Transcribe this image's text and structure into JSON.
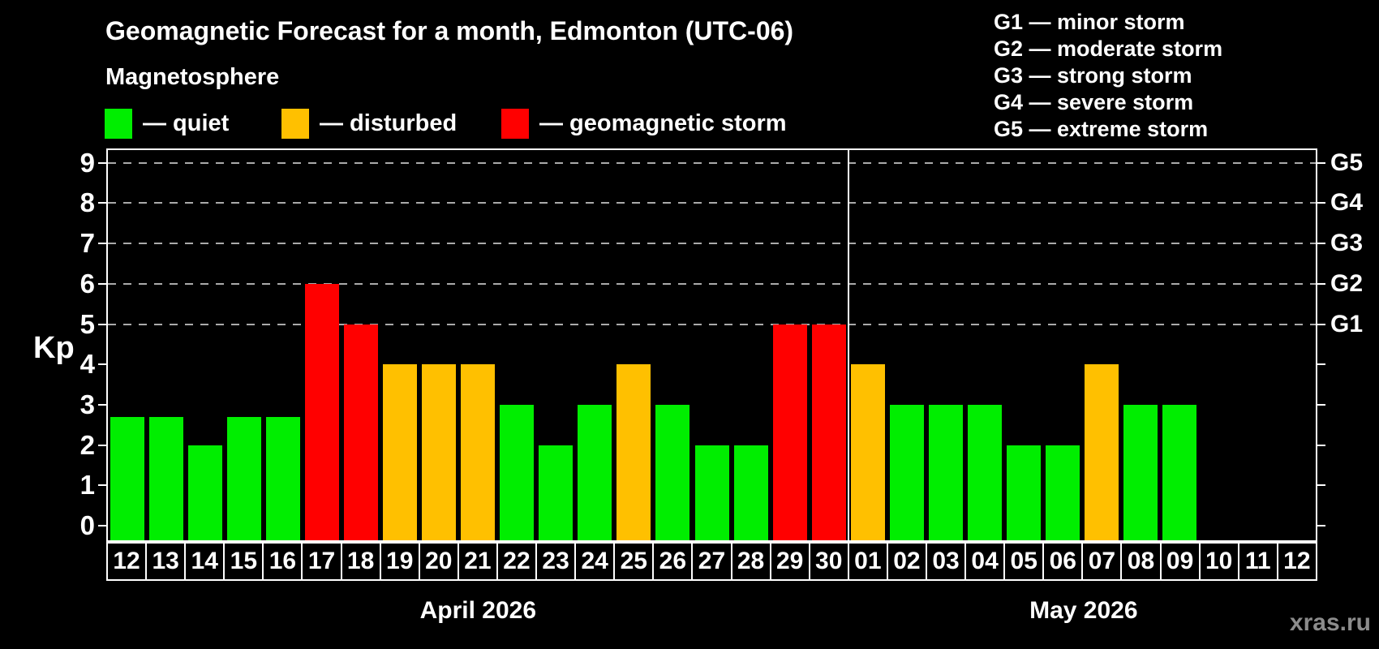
{
  "page": {
    "title": "Geomagnetic Forecast for a month, Edmonton (UTC-06)",
    "subtitle": "Magnetosphere",
    "watermark": "xras.ru"
  },
  "legend": {
    "items": [
      {
        "status": "quiet",
        "label": "— quiet",
        "color": "#00ee00"
      },
      {
        "status": "disturbed",
        "label": "— disturbed",
        "color": "#ffc000"
      },
      {
        "status": "storm",
        "label": "— geomagnetic storm",
        "color": "#ff0000"
      }
    ]
  },
  "storm_scale": {
    "lines": [
      "G1 — minor storm",
      "G2 — moderate storm",
      "G3 — strong storm",
      "G4 — severe storm",
      "G5 — extreme storm"
    ]
  },
  "axis": {
    "ylabel": "Kp",
    "y_ticks": [
      0,
      1,
      2,
      3,
      4,
      5,
      6,
      7,
      8,
      9
    ],
    "g_labels": [
      {
        "label": "G1",
        "kp": 5
      },
      {
        "label": "G2",
        "kp": 6
      },
      {
        "label": "G3",
        "kp": 7
      },
      {
        "label": "G4",
        "kp": 8
      },
      {
        "label": "G5",
        "kp": 9
      }
    ]
  },
  "chart_data": {
    "type": "bar",
    "title": "Geomagnetic Forecast for a month, Edmonton (UTC-06)",
    "ylabel": "Kp",
    "ylim": [
      0,
      9
    ],
    "gridlines_at_kp": [
      5,
      6,
      7,
      8,
      9
    ],
    "colors": {
      "quiet": "#00ee00",
      "disturbed": "#ffc000",
      "storm": "#ff0000"
    },
    "months": [
      {
        "label": "April 2026",
        "days": 19
      },
      {
        "label": "May 2026",
        "days": 12
      }
    ],
    "bars": [
      {
        "day": "12",
        "kp": 2.7,
        "status": "quiet"
      },
      {
        "day": "13",
        "kp": 2.7,
        "status": "quiet"
      },
      {
        "day": "14",
        "kp": 2,
        "status": "quiet"
      },
      {
        "day": "15",
        "kp": 2.7,
        "status": "quiet"
      },
      {
        "day": "16",
        "kp": 2.7,
        "status": "quiet"
      },
      {
        "day": "17",
        "kp": 6,
        "status": "storm"
      },
      {
        "day": "18",
        "kp": 5,
        "status": "storm"
      },
      {
        "day": "19",
        "kp": 4,
        "status": "disturbed"
      },
      {
        "day": "20",
        "kp": 4,
        "status": "disturbed"
      },
      {
        "day": "21",
        "kp": 4,
        "status": "disturbed"
      },
      {
        "day": "22",
        "kp": 3,
        "status": "quiet"
      },
      {
        "day": "23",
        "kp": 2,
        "status": "quiet"
      },
      {
        "day": "24",
        "kp": 3,
        "status": "quiet"
      },
      {
        "day": "25",
        "kp": 4,
        "status": "disturbed"
      },
      {
        "day": "26",
        "kp": 3,
        "status": "quiet"
      },
      {
        "day": "27",
        "kp": 2,
        "status": "quiet"
      },
      {
        "day": "28",
        "kp": 2,
        "status": "quiet"
      },
      {
        "day": "29",
        "kp": 5,
        "status": "storm"
      },
      {
        "day": "30",
        "kp": 5,
        "status": "storm"
      },
      {
        "day": "01",
        "kp": 4,
        "status": "disturbed"
      },
      {
        "day": "02",
        "kp": 3,
        "status": "quiet"
      },
      {
        "day": "03",
        "kp": 3,
        "status": "quiet"
      },
      {
        "day": "04",
        "kp": 3,
        "status": "quiet"
      },
      {
        "day": "05",
        "kp": 2,
        "status": "quiet"
      },
      {
        "day": "06",
        "kp": 2,
        "status": "quiet"
      },
      {
        "day": "07",
        "kp": 4,
        "status": "disturbed"
      },
      {
        "day": "08",
        "kp": 3,
        "status": "quiet"
      },
      {
        "day": "09",
        "kp": 3,
        "status": "quiet"
      },
      {
        "day": "10",
        "kp": null,
        "status": "none"
      },
      {
        "day": "11",
        "kp": null,
        "status": "none"
      },
      {
        "day": "12",
        "kp": null,
        "status": "none"
      }
    ]
  }
}
